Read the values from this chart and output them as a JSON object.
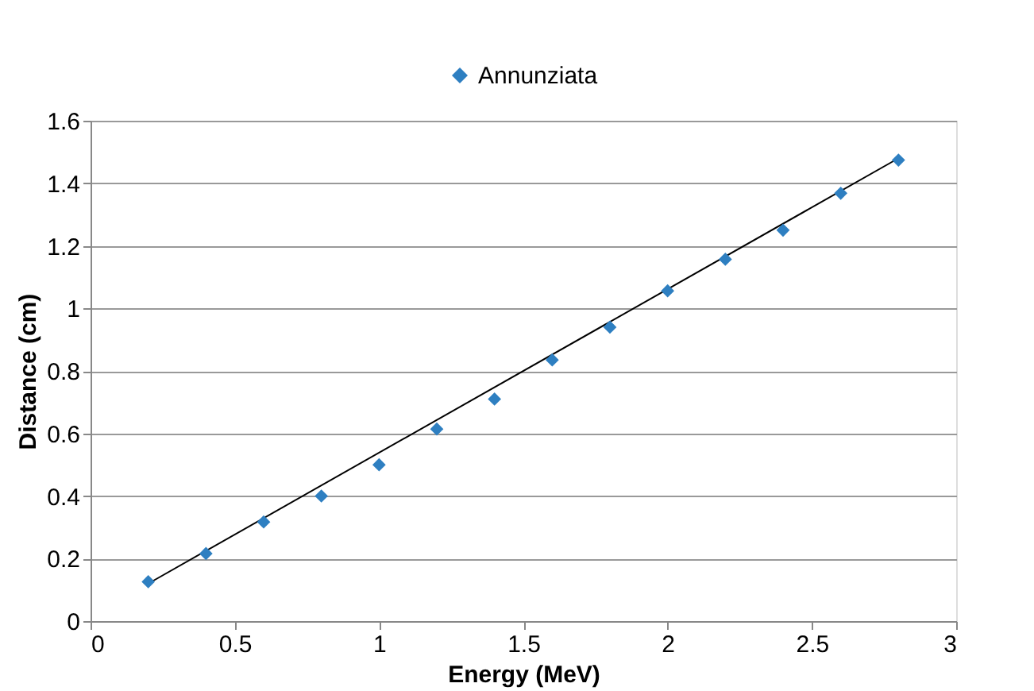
{
  "chart_data": {
    "type": "scatter",
    "xlabel": "Energy (MeV)",
    "ylabel": "Distance (cm)",
    "x": [
      0.2,
      0.4,
      0.6,
      0.8,
      1.0,
      1.2,
      1.4,
      1.6,
      1.8,
      2.0,
      2.2,
      2.4,
      2.6,
      2.8
    ],
    "series": [
      {
        "name": "Annunziata",
        "color": "#2e7fc1",
        "marker": "diamond",
        "values": [
          0.126,
          0.216,
          0.317,
          0.4,
          0.5,
          0.614,
          0.71,
          0.835,
          0.94,
          1.056,
          1.157,
          1.25,
          1.368,
          1.474
        ]
      },
      {
        "type": "line",
        "color": "#000000",
        "x": [
          0.2,
          2.8
        ],
        "values": [
          0.12,
          1.48
        ],
        "line_style": "solid",
        "marker": "none"
      }
    ],
    "xlim": [
      0,
      3
    ],
    "xticks": [
      0,
      0.5,
      1,
      1.5,
      2,
      2.5,
      3
    ],
    "ylim": [
      0,
      1.6
    ],
    "yticks": [
      0,
      0.2,
      0.4,
      0.6,
      0.8,
      1,
      1.2,
      1.4,
      1.6
    ],
    "grid": "y",
    "legend": "top"
  }
}
